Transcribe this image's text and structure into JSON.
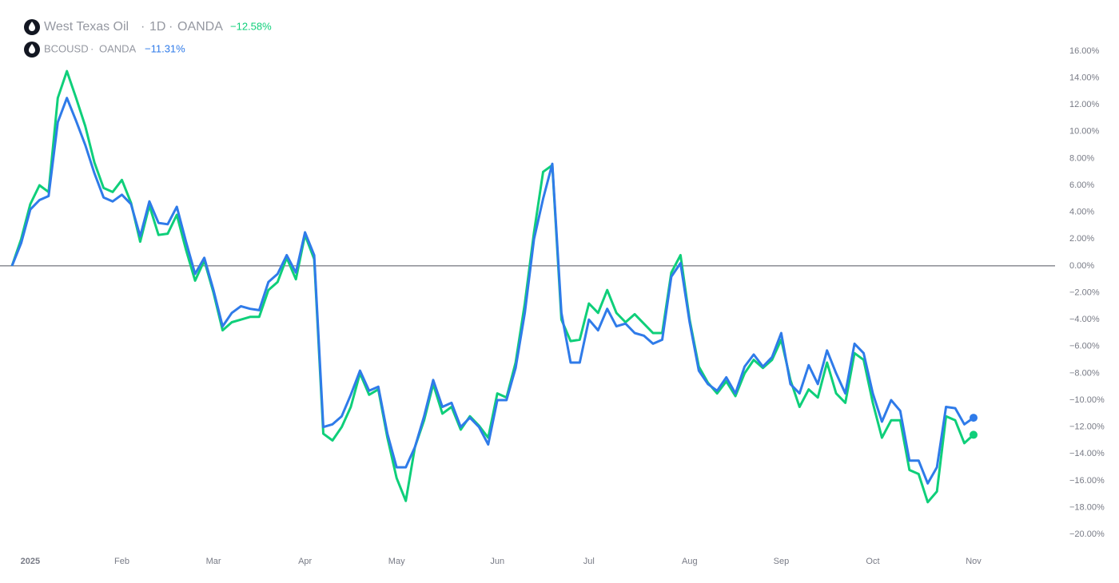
{
  "chart_data": {
    "type": "line",
    "interval": "1D",
    "categories": [
      null,
      null,
      "2025",
      null,
      null,
      null,
      null,
      null,
      null,
      null,
      null,
      null,
      "Feb",
      null,
      null,
      null,
      null,
      null,
      null,
      null,
      null,
      null,
      "Mar",
      null,
      null,
      null,
      null,
      null,
      null,
      null,
      null,
      null,
      "Apr",
      null,
      null,
      null,
      null,
      null,
      null,
      null,
      null,
      null,
      "May",
      null,
      null,
      null,
      null,
      null,
      null,
      null,
      null,
      null,
      null,
      "Jun",
      null,
      null,
      null,
      null,
      null,
      null,
      null,
      null,
      null,
      "Jul",
      null,
      null,
      null,
      null,
      null,
      null,
      null,
      null,
      null,
      null,
      "Aug",
      null,
      null,
      null,
      null,
      null,
      null,
      null,
      null,
      null,
      "Sep",
      null,
      null,
      null,
      null,
      null,
      null,
      null,
      null,
      null,
      "Oct",
      null,
      null,
      null,
      null,
      null,
      null,
      null,
      null,
      null,
      null,
      "Nov"
    ],
    "series": [
      {
        "name": "West Texas Oil",
        "source": "OANDA",
        "change_label": "−12.58%",
        "color": "#0fcf7a",
        "values": [
          0,
          2.0,
          4.6,
          6.0,
          5.5,
          12.5,
          14.5,
          12.5,
          10.4,
          7.7,
          5.8,
          5.5,
          6.4,
          4.7,
          1.8,
          4.5,
          2.3,
          2.4,
          3.8,
          1.2,
          -1.1,
          0.4,
          -2.0,
          -4.8,
          -4.2,
          -4.0,
          -3.8,
          -3.8,
          -1.8,
          -1.2,
          0.6,
          -1.0,
          2.3,
          0.5,
          -12.5,
          -13.0,
          -12.0,
          -10.5,
          -8.0,
          -9.6,
          -9.2,
          -12.8,
          -15.8,
          -17.5,
          -13.5,
          -11.5,
          -8.8,
          -11.0,
          -10.5,
          -12.2,
          -11.2,
          -11.9,
          -12.8,
          -9.5,
          -9.8,
          -7.2,
          -2.8,
          2.5,
          7.0,
          7.5,
          -4.0,
          -5.6,
          -5.5,
          -2.8,
          -3.5,
          -1.8,
          -3.5,
          -4.2,
          -3.6,
          -4.3,
          -5.0,
          -5.0,
          -0.5,
          0.8,
          -4.0,
          -7.5,
          -8.7,
          -9.5,
          -8.6,
          -9.7,
          -8.0,
          -7.0,
          -7.6,
          -7.0,
          -5.5,
          -8.5,
          -10.5,
          -9.2,
          -9.8,
          -7.2,
          -9.5,
          -10.2,
          -6.5,
          -7.0,
          -10.2,
          -12.8,
          -11.5,
          -11.5,
          -15.2,
          -15.5,
          -17.6,
          -16.8,
          -11.2,
          -11.5,
          -13.2,
          -12.58
        ]
      },
      {
        "name": "BCOUSD",
        "source": "OANDA",
        "change_label": "−11.31%",
        "color": "#2f7be9",
        "values": [
          0,
          1.7,
          4.2,
          4.9,
          5.2,
          10.7,
          12.5,
          10.8,
          9.0,
          6.9,
          5.1,
          4.8,
          5.3,
          4.6,
          2.2,
          4.8,
          3.2,
          3.1,
          4.4,
          1.8,
          -0.6,
          0.6,
          -1.8,
          -4.5,
          -3.5,
          -3.0,
          -3.2,
          -3.3,
          -1.2,
          -0.6,
          0.8,
          -0.5,
          2.5,
          0.8,
          -12.0,
          -11.8,
          -11.2,
          -9.6,
          -7.8,
          -9.3,
          -9.0,
          -12.5,
          -15.0,
          -15.0,
          -13.5,
          -11.2,
          -8.5,
          -10.5,
          -10.2,
          -12.0,
          -11.3,
          -12.0,
          -13.3,
          -10.0,
          -10.0,
          -7.6,
          -3.5,
          2.0,
          5.0,
          7.6,
          -3.5,
          -7.2,
          -7.2,
          -4.0,
          -4.8,
          -3.2,
          -4.5,
          -4.3,
          -5.0,
          -5.2,
          -5.8,
          -5.5,
          -0.8,
          0.2,
          -4.2,
          -7.8,
          -8.8,
          -9.3,
          -8.3,
          -9.5,
          -7.5,
          -6.6,
          -7.5,
          -6.8,
          -5.0,
          -8.8,
          -9.5,
          -7.4,
          -8.8,
          -6.3,
          -8.0,
          -9.5,
          -5.8,
          -6.5,
          -9.5,
          -11.6,
          -10.0,
          -10.8,
          -14.5,
          -14.5,
          -16.2,
          -15.0,
          -10.5,
          -10.6,
          -11.8,
          -11.31
        ]
      }
    ],
    "ylim": [
      -21,
      19.8
    ],
    "yticks": [
      {
        "value": 16,
        "label": "16.00%"
      },
      {
        "value": 14,
        "label": "14.00%"
      },
      {
        "value": 12,
        "label": "12.00%"
      },
      {
        "value": 10,
        "label": "10.00%"
      },
      {
        "value": 8,
        "label": "8.00%"
      },
      {
        "value": 6,
        "label": "6.00%"
      },
      {
        "value": 4,
        "label": "4.00%"
      },
      {
        "value": 2,
        "label": "2.00%"
      },
      {
        "value": 0,
        "label": "0.00%"
      },
      {
        "value": -2,
        "label": "−2.00%"
      },
      {
        "value": -4,
        "label": "−4.00%"
      },
      {
        "value": -6,
        "label": "−6.00%"
      },
      {
        "value": -8,
        "label": "−8.00%"
      },
      {
        "value": -10,
        "label": "−10.00%"
      },
      {
        "value": -12,
        "label": "−12.00%"
      },
      {
        "value": -14,
        "label": "−14.00%"
      },
      {
        "value": -16,
        "label": "−16.00%"
      },
      {
        "value": -18,
        "label": "−18.00%"
      },
      {
        "value": -20,
        "label": "−20.00%"
      }
    ],
    "zero_line": 0
  }
}
